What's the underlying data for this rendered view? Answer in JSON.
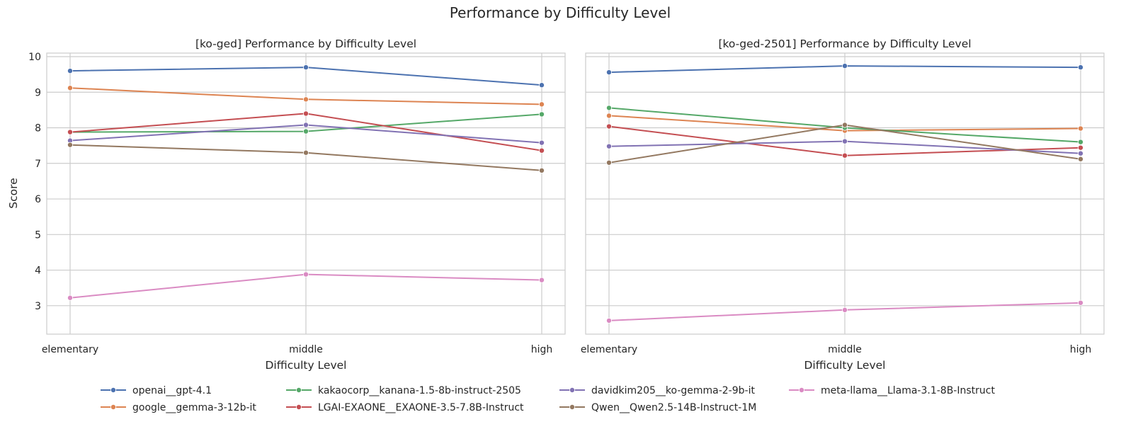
{
  "title": "Performance by Difficulty Level",
  "colors": {
    "openai__gpt-4.1": "#4c72b0",
    "google__gemma-3-12b-it": "#dd8452",
    "kakaocorp__kanana-1.5-8b-instruct-2505": "#55a868",
    "LGAI-EXAONE__EXAONE-3.5-7.8B-Instruct": "#c44e52",
    "davidkim205__ko-gemma-2-9b-it": "#8172b3",
    "Qwen__Qwen2.5-14B-Instruct-1M": "#937860",
    "meta-llama__Llama-3.1-8B-Instruct": "#da8bc3",
    "grid": "#cccccc",
    "frame": "#cccccc"
  },
  "legend": {
    "placement": "bottom-center",
    "items": [
      "openai__gpt-4.1",
      "google__gemma-3-12b-it",
      "kakaocorp__kanana-1.5-8b-instruct-2505",
      "LGAI-EXAONE__EXAONE-3.5-7.8B-Instruct",
      "davidkim205__ko-gemma-2-9b-it",
      "Qwen__Qwen2.5-14B-Instruct-1M",
      "meta-llama__Llama-3.1-8B-Instruct"
    ]
  },
  "chart_data": [
    {
      "type": "line",
      "title": "[ko-ged] Performance by Difficulty Level",
      "xlabel": "Difficulty Level",
      "ylabel": "Score",
      "categories": [
        "elementary",
        "middle",
        "high"
      ],
      "ylim": [
        2.2,
        10.1
      ],
      "yticks": [
        3,
        4,
        5,
        6,
        7,
        8,
        9,
        10
      ],
      "grid": true,
      "series": [
        {
          "name": "openai__gpt-4.1",
          "values": [
            9.6,
            9.7,
            9.2
          ]
        },
        {
          "name": "google__gemma-3-12b-it",
          "values": [
            9.12,
            8.8,
            8.66
          ]
        },
        {
          "name": "kakaocorp__kanana-1.5-8b-instruct-2505",
          "values": [
            7.88,
            7.9,
            8.38
          ]
        },
        {
          "name": "LGAI-EXAONE__EXAONE-3.5-7.8B-Instruct",
          "values": [
            7.88,
            8.4,
            7.36
          ]
        },
        {
          "name": "davidkim205__ko-gemma-2-9b-it",
          "values": [
            7.64,
            8.08,
            7.58
          ]
        },
        {
          "name": "Qwen__Qwen2.5-14B-Instruct-1M",
          "values": [
            7.52,
            7.3,
            6.8
          ]
        },
        {
          "name": "meta-llama__Llama-3.1-8B-Instruct",
          "values": [
            3.22,
            3.88,
            3.72
          ]
        }
      ]
    },
    {
      "type": "line",
      "title": "[ko-ged-2501] Performance by Difficulty Level",
      "xlabel": "Difficulty Level",
      "ylabel": "",
      "categories": [
        "elementary",
        "middle",
        "high"
      ],
      "ylim": [
        2.2,
        10.1
      ],
      "yticks": [
        3,
        4,
        5,
        6,
        7,
        8,
        9,
        10
      ],
      "grid": true,
      "series": [
        {
          "name": "openai__gpt-4.1",
          "values": [
            9.56,
            9.74,
            9.7
          ]
        },
        {
          "name": "google__gemma-3-12b-it",
          "values": [
            8.34,
            7.92,
            7.98
          ]
        },
        {
          "name": "kakaocorp__kanana-1.5-8b-instruct-2505",
          "values": [
            8.56,
            8.0,
            7.6
          ]
        },
        {
          "name": "LGAI-EXAONE__EXAONE-3.5-7.8B-Instruct",
          "values": [
            8.04,
            7.22,
            7.44
          ]
        },
        {
          "name": "davidkim205__ko-gemma-2-9b-it",
          "values": [
            7.48,
            7.62,
            7.28
          ]
        },
        {
          "name": "Qwen__Qwen2.5-14B-Instruct-1M",
          "values": [
            7.02,
            8.08,
            7.12
          ]
        },
        {
          "name": "meta-llama__Llama-3.1-8B-Instruct",
          "values": [
            2.58,
            2.88,
            3.08
          ]
        }
      ]
    }
  ]
}
